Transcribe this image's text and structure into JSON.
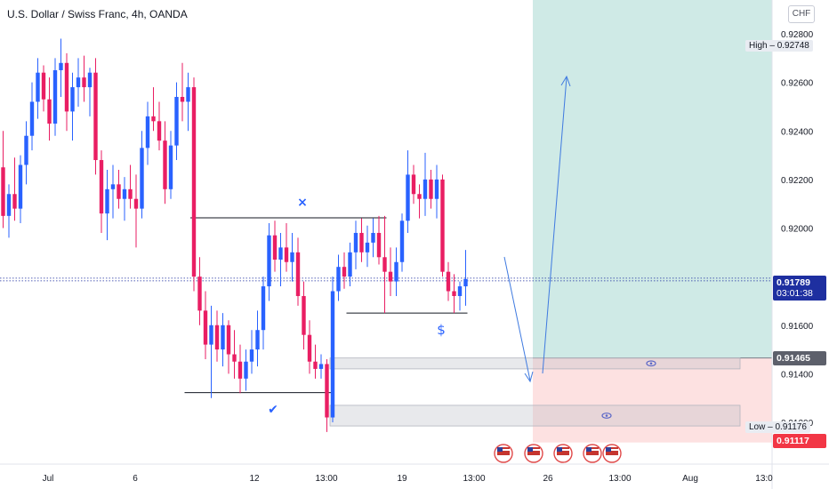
{
  "header": {
    "title": "U.S. Dollar / Swiss Franc, 4h, OANDA",
    "currency": "CHF"
  },
  "price_tags": {
    "current": "0.91789",
    "countdown": "03:01:38",
    "zone_level": "0.91465",
    "stop_level": "0.91117"
  },
  "high_marker": {
    "label": "High",
    "value": "0.92748"
  },
  "low_marker": {
    "label": "Low",
    "value": "0.91176"
  },
  "annotations": {
    "dollar": "$",
    "cross": "×",
    "check": "✔"
  },
  "chart_data": {
    "type": "candlestick",
    "symbol": "USDCHF",
    "timeframe": "4h",
    "source": "OANDA",
    "y_axis": {
      "ticks": [
        0.928,
        0.926,
        0.924,
        0.922,
        0.92,
        0.918,
        0.916,
        0.914,
        0.912
      ],
      "tick_labels": [
        "0.92800",
        "0.92600",
        "0.92400",
        "0.92200",
        "0.92000",
        "",
        "0.91600",
        "0.91400",
        "0.91200"
      ],
      "range": [
        0.9103,
        0.9289
      ]
    },
    "x_axis": {
      "tick_labels": [
        "Jul",
        "6",
        "12",
        "13:00",
        "19",
        "13:00",
        "26",
        "13:00",
        "Aug",
        "13:0"
      ]
    },
    "ohlc": [
      [
        0.9225,
        0.924,
        0.92,
        0.9205
      ],
      [
        0.9205,
        0.9218,
        0.9196,
        0.9214
      ],
      [
        0.9214,
        0.9229,
        0.9203,
        0.9208
      ],
      [
        0.9208,
        0.923,
        0.9202,
        0.9226
      ],
      [
        0.9226,
        0.9244,
        0.9218,
        0.9238
      ],
      [
        0.9238,
        0.926,
        0.9232,
        0.9252
      ],
      [
        0.9252,
        0.927,
        0.9245,
        0.9264
      ],
      [
        0.9264,
        0.9267,
        0.9248,
        0.9253
      ],
      [
        0.9253,
        0.9262,
        0.9236,
        0.9243
      ],
      [
        0.9243,
        0.927,
        0.9238,
        0.9265
      ],
      [
        0.9265,
        0.9278,
        0.9254,
        0.9268
      ],
      [
        0.9268,
        0.9272,
        0.924,
        0.9248
      ],
      [
        0.9248,
        0.9264,
        0.9236,
        0.9258
      ],
      [
        0.9258,
        0.927,
        0.925,
        0.9262
      ],
      [
        0.9262,
        0.9271,
        0.9252,
        0.9258
      ],
      [
        0.9258,
        0.9266,
        0.9246,
        0.9264
      ],
      [
        0.9264,
        0.927,
        0.9222,
        0.9228
      ],
      [
        0.9228,
        0.9232,
        0.9198,
        0.9206
      ],
      [
        0.9206,
        0.9224,
        0.9195,
        0.9216
      ],
      [
        0.9216,
        0.9226,
        0.9204,
        0.9218
      ],
      [
        0.9218,
        0.9224,
        0.9208,
        0.9212
      ],
      [
        0.9212,
        0.9221,
        0.9203,
        0.9216
      ],
      [
        0.9216,
        0.9226,
        0.9208,
        0.9212
      ],
      [
        0.9212,
        0.9222,
        0.9192,
        0.9208
      ],
      [
        0.9208,
        0.924,
        0.9204,
        0.9233
      ],
      [
        0.9233,
        0.9252,
        0.9226,
        0.9246
      ],
      [
        0.9246,
        0.9258,
        0.924,
        0.9244
      ],
      [
        0.9244,
        0.9252,
        0.9232,
        0.9236
      ],
      [
        0.9236,
        0.9244,
        0.921,
        0.9216
      ],
      [
        0.9216,
        0.924,
        0.9212,
        0.9234
      ],
      [
        0.9234,
        0.926,
        0.9228,
        0.9254
      ],
      [
        0.9254,
        0.9268,
        0.9244,
        0.9252
      ],
      [
        0.9252,
        0.9264,
        0.924,
        0.9258
      ],
      [
        0.9258,
        0.9262,
        0.9174,
        0.918
      ],
      [
        0.918,
        0.9188,
        0.916,
        0.9166
      ],
      [
        0.9166,
        0.9174,
        0.9146,
        0.9152
      ],
      [
        0.9152,
        0.9168,
        0.913,
        0.916
      ],
      [
        0.916,
        0.9166,
        0.9145,
        0.915
      ],
      [
        0.915,
        0.9165,
        0.9143,
        0.916
      ],
      [
        0.916,
        0.9162,
        0.914,
        0.9148
      ],
      [
        0.9148,
        0.9158,
        0.9138,
        0.9145
      ],
      [
        0.9145,
        0.9152,
        0.9132,
        0.9138
      ],
      [
        0.9138,
        0.915,
        0.9133,
        0.9145
      ],
      [
        0.9145,
        0.9158,
        0.914,
        0.915
      ],
      [
        0.915,
        0.9166,
        0.9143,
        0.9158
      ],
      [
        0.9158,
        0.918,
        0.915,
        0.9176
      ],
      [
        0.9176,
        0.9202,
        0.917,
        0.9197
      ],
      [
        0.9197,
        0.9203,
        0.9182,
        0.9187
      ],
      [
        0.9187,
        0.9198,
        0.9176,
        0.9192
      ],
      [
        0.9192,
        0.9202,
        0.9182,
        0.9186
      ],
      [
        0.9186,
        0.9198,
        0.9178,
        0.919
      ],
      [
        0.919,
        0.9196,
        0.9168,
        0.9172
      ],
      [
        0.9172,
        0.9178,
        0.915,
        0.9156
      ],
      [
        0.9156,
        0.9162,
        0.914,
        0.9145
      ],
      [
        0.9145,
        0.9152,
        0.9138,
        0.9142
      ],
      [
        0.9142,
        0.9148,
        0.9138,
        0.9144
      ],
      [
        0.9144,
        0.9146,
        0.9116,
        0.9122
      ],
      [
        0.9122,
        0.918,
        0.912,
        0.9174
      ],
      [
        0.9174,
        0.9189,
        0.917,
        0.9184
      ],
      [
        0.9184,
        0.919,
        0.9175,
        0.918
      ],
      [
        0.918,
        0.9194,
        0.9176,
        0.919
      ],
      [
        0.919,
        0.9203,
        0.9183,
        0.9198
      ],
      [
        0.9198,
        0.9204,
        0.9186,
        0.919
      ],
      [
        0.919,
        0.9201,
        0.9184,
        0.9194
      ],
      [
        0.9194,
        0.9204,
        0.9188,
        0.9198
      ],
      [
        0.9198,
        0.9205,
        0.9185,
        0.9188
      ],
      [
        0.9188,
        0.9205,
        0.9165,
        0.9182
      ],
      [
        0.9182,
        0.9192,
        0.9172,
        0.9178
      ],
      [
        0.9178,
        0.9192,
        0.9172,
        0.9186
      ],
      [
        0.9186,
        0.9206,
        0.9182,
        0.9203
      ],
      [
        0.9203,
        0.9232,
        0.9198,
        0.9222
      ],
      [
        0.9222,
        0.9226,
        0.921,
        0.9214
      ],
      [
        0.9214,
        0.9218,
        0.9204,
        0.9212
      ],
      [
        0.9212,
        0.9231,
        0.9205,
        0.922
      ],
      [
        0.922,
        0.9224,
        0.9208,
        0.9212
      ],
      [
        0.9212,
        0.9226,
        0.9204,
        0.922
      ],
      [
        0.922,
        0.9222,
        0.918,
        0.9182
      ],
      [
        0.9182,
        0.9186,
        0.917,
        0.9174
      ],
      [
        0.9174,
        0.9181,
        0.9165,
        0.9172
      ],
      [
        0.9172,
        0.9178,
        0.9166,
        0.9176
      ],
      [
        0.9176,
        0.9191,
        0.9168,
        0.9179
      ]
    ],
    "horizontal_levels": [
      {
        "price": 0.92042,
        "from_bar": 33,
        "to_bar": 66
      },
      {
        "price": 0.9165,
        "from_bar": 60,
        "to_bar": 80
      },
      {
        "price": 0.91322,
        "from_bar": 32,
        "to_bar": 57
      }
    ],
    "zones": [
      {
        "top": 0.91465,
        "bottom": 0.9142,
        "from_bar": 57,
        "to_bar": 130
      },
      {
        "top": 0.9127,
        "bottom": 0.91185,
        "from_bar": 57,
        "to_bar": 130
      }
    ],
    "position": {
      "type": "long",
      "entry": 0.91465,
      "target": 0.929,
      "stop": 0.91117
    },
    "projection_path": [
      [
        83,
        0.919
      ],
      [
        88,
        0.9138
      ],
      [
        89,
        0.914
      ],
      [
        95,
        0.926
      ]
    ],
    "colors": {
      "up": "#2962ff",
      "down": "#e91e63",
      "tp_zone": "#cfeae6",
      "sl_zone": "#fde1e1"
    }
  }
}
